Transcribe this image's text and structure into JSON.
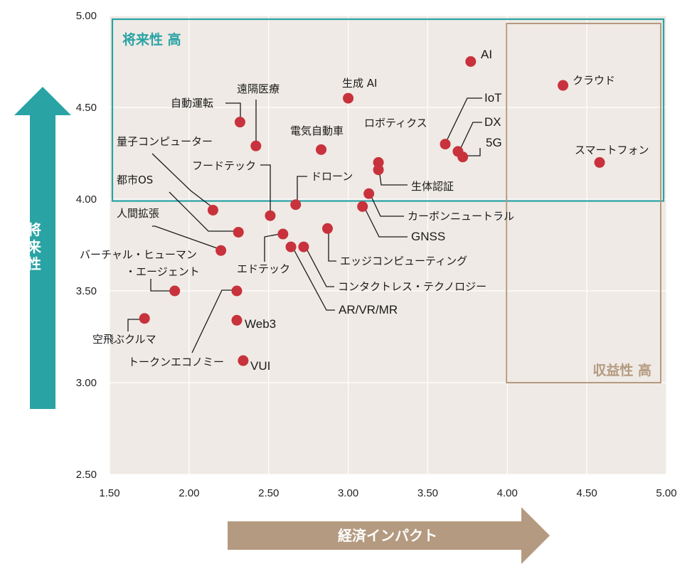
{
  "chart_data": {
    "type": "scatter",
    "xlim": [
      1.5,
      5.0
    ],
    "ylim": [
      2.5,
      5.0
    ],
    "xticks": [
      "1.50",
      "2.00",
      "2.50",
      "3.00",
      "3.50",
      "4.00",
      "4.50",
      "5.00"
    ],
    "yticks": [
      "2.50",
      "3.00",
      "3.50",
      "4.00",
      "4.50",
      "5.00"
    ],
    "grid": true,
    "xlabel": "経済インパクト",
    "ylabel": "将来性",
    "marker_color": "#c8323c",
    "regions": [
      {
        "label": "将来性 高",
        "x": [
          1.5,
          5.0
        ],
        "y": [
          3.99,
          5.0
        ],
        "color": "#2aa3a5"
      },
      {
        "label": "収益性 高",
        "x": [
          4.0,
          4.97
        ],
        "y": [
          3.0,
          4.97
        ],
        "color": "#b49a80"
      }
    ],
    "points": [
      {
        "label": "AI",
        "x": 3.77,
        "y": 4.75
      },
      {
        "label": "クラウド",
        "x": 4.35,
        "y": 4.62
      },
      {
        "label": "生成 AI",
        "x": 3.0,
        "y": 4.55
      },
      {
        "label": "遠隔医療",
        "x": 2.42,
        "y": 4.29
      },
      {
        "label": "自動運転",
        "x": 2.32,
        "y": 4.42
      },
      {
        "label": "IoT",
        "x": 3.61,
        "y": 4.3
      },
      {
        "label": "DX",
        "x": 3.69,
        "y": 4.26
      },
      {
        "label": "5G",
        "x": 3.72,
        "y": 4.23
      },
      {
        "label": "スマートフォン",
        "x": 4.58,
        "y": 4.2
      },
      {
        "label": "電気自動車",
        "x": 2.83,
        "y": 4.27
      },
      {
        "label": "ロボティクス",
        "x": 3.19,
        "y": 4.2
      },
      {
        "label": "生体認証",
        "x": 3.19,
        "y": 4.16
      },
      {
        "label": "量子コンピューター",
        "x": 2.15,
        "y": 3.94
      },
      {
        "label": "都市OS",
        "x": 2.31,
        "y": 3.82
      },
      {
        "label": "フードテック",
        "x": 2.51,
        "y": 3.91
      },
      {
        "label": "ドローン",
        "x": 2.67,
        "y": 3.97
      },
      {
        "label": "カーボンニュートラル",
        "x": 3.13,
        "y": 4.03
      },
      {
        "label": "GNSS",
        "x": 3.09,
        "y": 3.96
      },
      {
        "label": "人間拡張",
        "x": 2.2,
        "y": 3.72
      },
      {
        "label": "エッジコンピューティング",
        "x": 2.87,
        "y": 3.84
      },
      {
        "label": "エドテック",
        "x": 2.59,
        "y": 3.81
      },
      {
        "label": "コンタクトレス・テクノロジー",
        "x": 2.72,
        "y": 3.74
      },
      {
        "label": "AR/VR/MR",
        "x": 2.64,
        "y": 3.74
      },
      {
        "label": "バーチャル・ヒューマン\n・エージェント",
        "x": 1.91,
        "y": 3.5
      },
      {
        "label": "トークンエコノミー",
        "x": 2.3,
        "y": 3.5
      },
      {
        "label": "空飛ぶクルマ",
        "x": 1.72,
        "y": 3.35
      },
      {
        "label": "Web3",
        "x": 2.3,
        "y": 3.34
      },
      {
        "label": "VUI",
        "x": 2.34,
        "y": 3.12
      }
    ]
  }
}
